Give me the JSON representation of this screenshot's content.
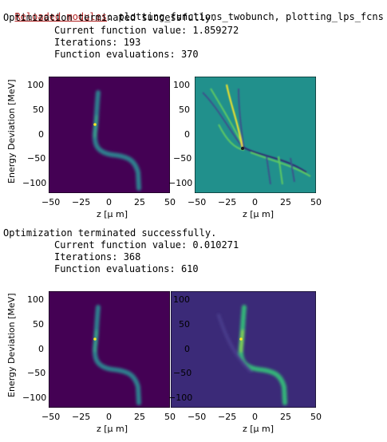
{
  "header": {
    "reload_label": "Reloaded modules",
    "reload_rest": ": plotting_functions_twobunch, plotting_lps_fcns"
  },
  "block1": {
    "status": "Optimization terminated successfully.",
    "current": "Current function value: 1.859272",
    "iterations": "Iterations: 193",
    "fevals": "Function evaluations: 370"
  },
  "block2": {
    "status": "Optimization terminated successfully.",
    "current": "Current function value: 0.010271",
    "iterations": "Iterations: 368",
    "fevals": "Function evaluations: 610"
  },
  "plots": {
    "ylabel": "Energy Deviation [MeV]",
    "xlabel": "z [μ m]",
    "xticks": [
      "−50",
      "−25",
      "0",
      "25",
      "50"
    ],
    "yticks": [
      "100",
      "50",
      "0",
      "−50",
      "−100"
    ]
  },
  "chart_data": [
    {
      "type": "heatmap",
      "xlabel": "z [μ m]",
      "ylabel": "Energy Deviation [MeV]",
      "xlim": [
        -50,
        50
      ],
      "ylim": [
        -120,
        120
      ]
    },
    {
      "type": "heatmap",
      "xlabel": "z [μ m]",
      "ylabel": "",
      "xlim": [
        -50,
        50
      ],
      "ylim": [
        -120,
        120
      ]
    },
    {
      "type": "heatmap",
      "xlabel": "z [μ m]",
      "ylabel": "Energy Deviation [MeV]",
      "xlim": [
        -50,
        50
      ],
      "ylim": [
        -120,
        120
      ]
    },
    {
      "type": "heatmap",
      "xlabel": "z [μ m]",
      "ylabel": "",
      "xlim": [
        -50,
        50
      ],
      "ylim": [
        -120,
        120
      ]
    }
  ],
  "colors": {
    "purple": "#440154",
    "teal": "#21908c",
    "green": "#5ec962",
    "yellow": "#fde725",
    "link": "#b22222"
  }
}
